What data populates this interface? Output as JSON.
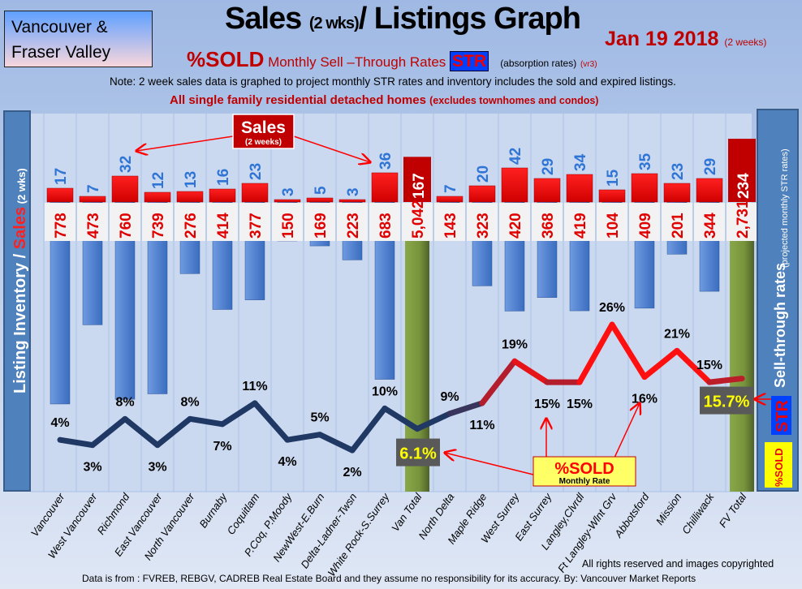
{
  "header": {
    "region": [
      "Vancouver &",
      "Fraser Valley"
    ],
    "title_main": "Sales ",
    "title_small": "(2 wks)",
    "title_rest": "/ Listings Graph",
    "date": "Jan 19 2018 ",
    "date_note": "(2 weeks)",
    "subtitle_sold": "%SOLD",
    "subtitle_text": " Monthly Sell –Through Rates ",
    "subtitle_str": "STR",
    "subtitle_abs": "(absorption rates)",
    "subtitle_ver": "(vr3)",
    "note": "Note: 2 week sales data is graphed to project monthly STR rates and inventory includes the sold and expired listings.",
    "scope": "All single family residential detached homes ",
    "scope_note": "(excludes townhomes and condos)"
  },
  "footer": {
    "rights": "All rights reserved and  images copyrighted",
    "source": "Data is from : FVREB, REBGV, CADREB Real Estate Board and they assume no responsibility for its accuracy. By: Vancouver Market Reports"
  },
  "colors": {
    "sales": "#ff0000",
    "sales_total": "#c00000",
    "listings": "#4f81d0",
    "totals": "#77933c",
    "str_low": "#1f3864",
    "str_high": "#ff0000",
    "panel": "#4f81bd"
  },
  "chart_data": {
    "type": "bar",
    "title": "Sales (2 wks)/ Listings Graph",
    "ylabel_left": "Listing Inventory / Sales (2 wks)",
    "ylabel_left_parts": [
      "Listing Inventory / ",
      "Sales",
      " (2 wks)"
    ],
    "ylabel_right": "Sell-through rates",
    "ylabel_right_note": "(projected monthly STR rates)",
    "right_legend_str": "STR",
    "right_legend_sold": "%SOLD",
    "annotations": {
      "sales_label": "Sales",
      "sales_sub": "(2 weeks)",
      "sold_label": "%SOLD",
      "sold_sub": "Monthly Rate"
    },
    "categories": [
      "Vancouver",
      "West Vancouver",
      "Richmond",
      "East Vancouver",
      "North Vancouver",
      "Burnaby",
      "Coquitlam",
      "P.Coq, P.Moody",
      "NewWest-E.Burn",
      "Delta-Ladner-Twsn",
      "White Rock-S.Surrey",
      "Van Total",
      "North Delta",
      "Maple Ridge",
      "West Surrey",
      "East Surrey",
      "Langley,Clvrdl",
      "Ft Langley-Wlnt Grv",
      "Abbotsford",
      "Mission",
      "Chilliwack",
      "FV Total"
    ],
    "is_total": [
      false,
      false,
      false,
      false,
      false,
      false,
      false,
      false,
      false,
      false,
      false,
      true,
      false,
      false,
      false,
      false,
      false,
      false,
      false,
      false,
      false,
      true
    ],
    "series": [
      {
        "name": "Sales (2 weeks)",
        "values": [
          17,
          7,
          32,
          12,
          13,
          16,
          23,
          3,
          5,
          3,
          36,
          167,
          7,
          20,
          42,
          29,
          34,
          15,
          35,
          23,
          29,
          234
        ]
      },
      {
        "name": "Listing Inventory",
        "values": [
          778,
          473,
          760,
          739,
          276,
          414,
          377,
          150,
          169,
          223,
          683,
          5042,
          143,
          323,
          420,
          368,
          419,
          104,
          409,
          201,
          344,
          2731
        ]
      },
      {
        "name": "%SOLD Monthly Sell-Through Rate",
        "values": [
          4,
          3,
          8,
          3,
          8,
          7,
          11,
          4,
          5,
          2,
          10,
          6.1,
          9,
          11,
          19,
          15,
          15,
          26,
          16,
          21,
          15,
          15.7
        ]
      }
    ],
    "listing_labels": [
      "778",
      "473",
      "760",
      "739",
      "276",
      "414",
      "377",
      "150",
      "169",
      "223",
      "683",
      "5,042",
      "143",
      "323",
      "420",
      "368",
      "419",
      "104",
      "409",
      "201",
      "344",
      "2,731"
    ],
    "str_labels": [
      "4%",
      "3%",
      "8%",
      "3%",
      "8%",
      "7%",
      "11%",
      "4%",
      "5%",
      "2%",
      "10%",
      "6.1%",
      "9%",
      "11%",
      "19%",
      "15%",
      "15%",
      "26%",
      "16%",
      "21%",
      "15%",
      "15.7%"
    ],
    "grid": "vertical"
  }
}
